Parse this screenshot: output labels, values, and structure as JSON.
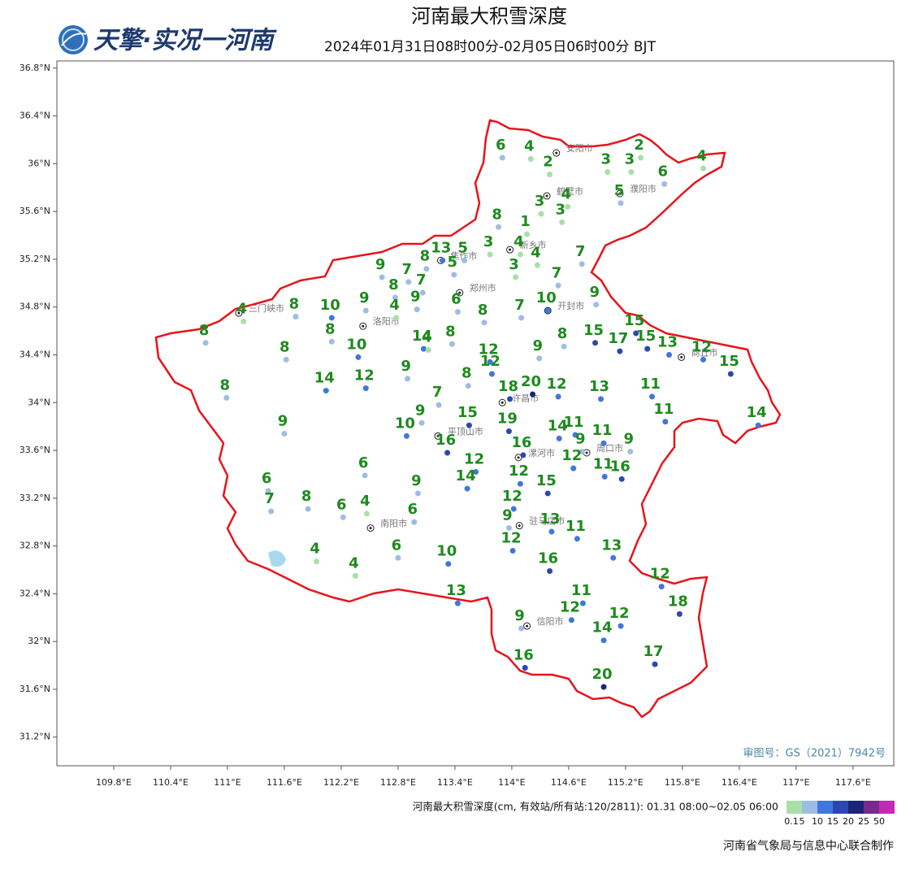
{
  "map": {
    "title": "河南最大积雪深度",
    "subtitle": "2024年01月31日08时00分-02月05日06时00分 BJT",
    "logo": "天擎·实况一河南",
    "review_number": "审图号：GS（2021）7942号",
    "footer": "河南省气象局与信息中心联合制作",
    "xlim": [
      109.2,
      118.03
    ],
    "ylim": [
      30.96,
      36.86
    ],
    "xticks": [
      {
        "value": 109.8,
        "label": "109.8°E"
      },
      {
        "value": 110.4,
        "label": "110.4°E"
      },
      {
        "value": 111,
        "label": "111°E"
      },
      {
        "value": 111.6,
        "label": "111.6°E"
      },
      {
        "value": 112.2,
        "label": "112.2°E"
      },
      {
        "value": 112.8,
        "label": "112.8°E"
      },
      {
        "value": 113.4,
        "label": "113.4°E"
      },
      {
        "value": 114,
        "label": "114°E"
      },
      {
        "value": 114.6,
        "label": "114.6°E"
      },
      {
        "value": 115.2,
        "label": "115.2°E"
      },
      {
        "value": 115.8,
        "label": "115.8°E"
      },
      {
        "value": 116.4,
        "label": "116.4°E"
      },
      {
        "value": 117,
        "label": "117°E"
      },
      {
        "value": 117.6,
        "label": "117.6°E"
      }
    ],
    "yticks": [
      {
        "value": 36.8,
        "label": "36.8°N"
      },
      {
        "value": 36.4,
        "label": "36.4°N"
      },
      {
        "value": 36,
        "label": "36°N"
      },
      {
        "value": 35.6,
        "label": "35.6°N"
      },
      {
        "value": 35.2,
        "label": "35.2°N"
      },
      {
        "value": 34.8,
        "label": "34.8°N"
      },
      {
        "value": 34.4,
        "label": "34.4°N"
      },
      {
        "value": 34,
        "label": "34°N"
      },
      {
        "value": 33.6,
        "label": "33.6°N"
      },
      {
        "value": 33.2,
        "label": "33.2°N"
      },
      {
        "value": 32.8,
        "label": "32.8°N"
      },
      {
        "value": 32.4,
        "label": "32.4°N"
      },
      {
        "value": 32,
        "label": "32°N"
      },
      {
        "value": 31.6,
        "label": "31.6°N"
      },
      {
        "value": 31.2,
        "label": "31.2°N"
      }
    ],
    "legend": {
      "caption": "河南最大积雪深度(cm, 有效站/所有站:120/2811): 01.31 08:00~02.05 06:00",
      "bounds": [
        0.1,
        5,
        10,
        15,
        20,
        25,
        50
      ],
      "colors": [
        "#a8e0a8",
        "#9dbde6",
        "#3f78dc",
        "#2a48b0",
        "#1a2478",
        "#7a2a8c",
        "#c22ab8"
      ]
    },
    "cities": [
      {
        "name": "安阳市",
        "lon": 114.47,
        "lat": 36.09
      },
      {
        "name": "鹤壁市",
        "lon": 114.37,
        "lat": 35.73
      },
      {
        "name": "濮阳市",
        "lon": 115.14,
        "lat": 35.75
      },
      {
        "name": "新乡市",
        "lon": 113.98,
        "lat": 35.28
      },
      {
        "name": "焦作市",
        "lon": 113.25,
        "lat": 35.19
      },
      {
        "name": "郑州市",
        "lon": 113.45,
        "lat": 34.92
      },
      {
        "name": "开封市",
        "lon": 114.38,
        "lat": 34.77
      },
      {
        "name": "三门峡市",
        "lon": 111.12,
        "lat": 34.75
      },
      {
        "name": "洛阳市",
        "lon": 112.43,
        "lat": 34.64
      },
      {
        "name": "商丘市",
        "lon": 115.79,
        "lat": 34.38
      },
      {
        "name": "许昌市",
        "lon": 113.9,
        "lat": 34.0
      },
      {
        "name": "平顶山市",
        "lon": 113.22,
        "lat": 33.72
      },
      {
        "name": "漯河市",
        "lon": 114.07,
        "lat": 33.54
      },
      {
        "name": "周口市",
        "lon": 114.79,
        "lat": 33.58
      },
      {
        "name": "南阳市",
        "lon": 112.51,
        "lat": 32.95
      },
      {
        "name": "驻马店市",
        "lon": 114.08,
        "lat": 32.97
      },
      {
        "name": "信阳市",
        "lon": 114.16,
        "lat": 32.13
      }
    ],
    "stations": [
      {
        "lon": 113.9,
        "lat": 36.05,
        "value": 6
      },
      {
        "lon": 114.2,
        "lat": 36.04,
        "value": 4
      },
      {
        "lon": 114.4,
        "lat": 35.91,
        "value": 2
      },
      {
        "lon": 115.01,
        "lat": 35.93,
        "value": 3
      },
      {
        "lon": 115.26,
        "lat": 35.93,
        "value": 3
      },
      {
        "lon": 115.36,
        "lat": 36.05,
        "value": 2
      },
      {
        "lon": 115.61,
        "lat": 35.83,
        "value": 6
      },
      {
        "lon": 116.02,
        "lat": 35.96,
        "value": 4
      },
      {
        "lon": 114.31,
        "lat": 35.58,
        "value": 3
      },
      {
        "lon": 114.59,
        "lat": 35.64,
        "value": 4
      },
      {
        "lon": 114.53,
        "lat": 35.51,
        "value": 3
      },
      {
        "lon": 115.15,
        "lat": 35.67,
        "value": 5
      },
      {
        "lon": 113.86,
        "lat": 35.47,
        "value": 8
      },
      {
        "lon": 114.16,
        "lat": 35.41,
        "value": 1
      },
      {
        "lon": 113.77,
        "lat": 35.24,
        "value": 3
      },
      {
        "lon": 114.09,
        "lat": 35.24,
        "value": 4
      },
      {
        "lon": 114.27,
        "lat": 35.15,
        "value": 4
      },
      {
        "lon": 114.04,
        "lat": 35.05,
        "value": 3
      },
      {
        "lon": 114.74,
        "lat": 35.16,
        "value": 7
      },
      {
        "lon": 113.27,
        "lat": 35.19,
        "value": 13
      },
      {
        "lon": 113.5,
        "lat": 35.19,
        "value": 5
      },
      {
        "lon": 113.39,
        "lat": 35.07,
        "value": 5
      },
      {
        "lon": 113.1,
        "lat": 35.12,
        "value": 8
      },
      {
        "lon": 112.63,
        "lat": 35.05,
        "value": 9
      },
      {
        "lon": 112.91,
        "lat": 35.01,
        "value": 7
      },
      {
        "lon": 113.06,
        "lat": 34.92,
        "value": 7
      },
      {
        "lon": 112.77,
        "lat": 34.88,
        "value": 8
      },
      {
        "lon": 113.0,
        "lat": 34.78,
        "value": 9
      },
      {
        "lon": 112.46,
        "lat": 34.77,
        "value": 9
      },
      {
        "lon": 112.78,
        "lat": 34.71,
        "value": 4
      },
      {
        "lon": 113.43,
        "lat": 34.76,
        "value": 6
      },
      {
        "lon": 113.71,
        "lat": 34.67,
        "value": 8
      },
      {
        "lon": 114.1,
        "lat": 34.71,
        "value": 7
      },
      {
        "lon": 114.49,
        "lat": 34.98,
        "value": 7
      },
      {
        "lon": 114.38,
        "lat": 34.77,
        "value": 10
      },
      {
        "lon": 114.89,
        "lat": 34.82,
        "value": 9
      },
      {
        "lon": 111.17,
        "lat": 34.68,
        "value": 4
      },
      {
        "lon": 110.77,
        "lat": 34.5,
        "value": 8
      },
      {
        "lon": 111.72,
        "lat": 34.72,
        "value": 8
      },
      {
        "lon": 112.1,
        "lat": 34.71,
        "value": 10
      },
      {
        "lon": 112.1,
        "lat": 34.51,
        "value": 8
      },
      {
        "lon": 111.62,
        "lat": 34.36,
        "value": 8
      },
      {
        "lon": 112.38,
        "lat": 34.38,
        "value": 10
      },
      {
        "lon": 113.07,
        "lat": 34.45,
        "value": 14
      },
      {
        "lon": 113.12,
        "lat": 34.44,
        "value": 4
      },
      {
        "lon": 113.37,
        "lat": 34.49,
        "value": 8
      },
      {
        "lon": 113.77,
        "lat": 34.34,
        "value": 12
      },
      {
        "lon": 113.79,
        "lat": 34.24,
        "value": 12
      },
      {
        "lon": 114.29,
        "lat": 34.37,
        "value": 9
      },
      {
        "lon": 114.55,
        "lat": 34.47,
        "value": 8
      },
      {
        "lon": 114.88,
        "lat": 34.5,
        "value": 15
      },
      {
        "lon": 115.14,
        "lat": 34.43,
        "value": 17
      },
      {
        "lon": 115.31,
        "lat": 34.58,
        "value": 15
      },
      {
        "lon": 115.43,
        "lat": 34.45,
        "value": 15
      },
      {
        "lon": 115.66,
        "lat": 34.4,
        "value": 13
      },
      {
        "lon": 116.02,
        "lat": 34.36,
        "value": 12
      },
      {
        "lon": 116.31,
        "lat": 34.24,
        "value": 15
      },
      {
        "lon": 110.99,
        "lat": 34.04,
        "value": 8
      },
      {
        "lon": 112.04,
        "lat": 34.1,
        "value": 14
      },
      {
        "lon": 112.46,
        "lat": 34.12,
        "value": 12
      },
      {
        "lon": 112.9,
        "lat": 34.2,
        "value": 9
      },
      {
        "lon": 113.54,
        "lat": 34.14,
        "value": 8
      },
      {
        "lon": 113.23,
        "lat": 33.98,
        "value": 7
      },
      {
        "lon": 113.98,
        "lat": 34.03,
        "value": 18
      },
      {
        "lon": 114.22,
        "lat": 34.07,
        "value": 20
      },
      {
        "lon": 114.49,
        "lat": 34.05,
        "value": 12
      },
      {
        "lon": 114.94,
        "lat": 34.03,
        "value": 13
      },
      {
        "lon": 115.48,
        "lat": 34.05,
        "value": 11
      },
      {
        "lon": 115.62,
        "lat": 33.84,
        "value": 11
      },
      {
        "lon": 116.6,
        "lat": 33.81,
        "value": 14
      },
      {
        "lon": 113.05,
        "lat": 33.83,
        "value": 9
      },
      {
        "lon": 113.55,
        "lat": 33.81,
        "value": 15
      },
      {
        "lon": 112.89,
        "lat": 33.72,
        "value": 10
      },
      {
        "lon": 113.97,
        "lat": 33.76,
        "value": 19
      },
      {
        "lon": 111.6,
        "lat": 33.74,
        "value": 9
      },
      {
        "lon": 113.32,
        "lat": 33.58,
        "value": 16
      },
      {
        "lon": 114.12,
        "lat": 33.56,
        "value": 16
      },
      {
        "lon": 114.5,
        "lat": 33.7,
        "value": 14
      },
      {
        "lon": 114.67,
        "lat": 33.73,
        "value": 11
      },
      {
        "lon": 114.74,
        "lat": 33.59,
        "value": 9
      },
      {
        "lon": 114.97,
        "lat": 33.66,
        "value": 11
      },
      {
        "lon": 115.25,
        "lat": 33.59,
        "value": 9
      },
      {
        "lon": 114.65,
        "lat": 33.45,
        "value": 12
      },
      {
        "lon": 114.98,
        "lat": 33.38,
        "value": 11
      },
      {
        "lon": 115.16,
        "lat": 33.36,
        "value": 16
      },
      {
        "lon": 112.45,
        "lat": 33.39,
        "value": 6
      },
      {
        "lon": 113.62,
        "lat": 33.42,
        "value": 12
      },
      {
        "lon": 114.09,
        "lat": 33.32,
        "value": 12
      },
      {
        "lon": 113.53,
        "lat": 33.28,
        "value": 14
      },
      {
        "lon": 114.38,
        "lat": 33.24,
        "value": 15
      },
      {
        "lon": 113.01,
        "lat": 33.24,
        "value": 9
      },
      {
        "lon": 111.43,
        "lat": 33.26,
        "value": 6
      },
      {
        "lon": 111.46,
        "lat": 33.09,
        "value": 7
      },
      {
        "lon": 111.85,
        "lat": 33.11,
        "value": 8
      },
      {
        "lon": 112.22,
        "lat": 33.04,
        "value": 6
      },
      {
        "lon": 112.47,
        "lat": 33.07,
        "value": 4
      },
      {
        "lon": 112.97,
        "lat": 33.0,
        "value": 6
      },
      {
        "lon": 114.02,
        "lat": 33.11,
        "value": 12
      },
      {
        "lon": 113.97,
        "lat": 32.95,
        "value": 9
      },
      {
        "lon": 114.42,
        "lat": 32.92,
        "value": 13
      },
      {
        "lon": 114.69,
        "lat": 32.86,
        "value": 11
      },
      {
        "lon": 114.01,
        "lat": 32.76,
        "value": 12
      },
      {
        "lon": 112.8,
        "lat": 32.7,
        "value": 6
      },
      {
        "lon": 111.94,
        "lat": 32.67,
        "value": 4
      },
      {
        "lon": 112.35,
        "lat": 32.55,
        "value": 4
      },
      {
        "lon": 113.33,
        "lat": 32.65,
        "value": 10
      },
      {
        "lon": 115.07,
        "lat": 32.7,
        "value": 13
      },
      {
        "lon": 114.4,
        "lat": 32.59,
        "value": 16
      },
      {
        "lon": 115.58,
        "lat": 32.46,
        "value": 12
      },
      {
        "lon": 114.75,
        "lat": 32.32,
        "value": 11
      },
      {
        "lon": 115.77,
        "lat": 32.23,
        "value": 18
      },
      {
        "lon": 113.43,
        "lat": 32.32,
        "value": 13
      },
      {
        "lon": 114.63,
        "lat": 32.18,
        "value": 12
      },
      {
        "lon": 115.15,
        "lat": 32.13,
        "value": 12
      },
      {
        "lon": 114.1,
        "lat": 32.11,
        "value": 9
      },
      {
        "lon": 114.97,
        "lat": 32.01,
        "value": 14
      },
      {
        "lon": 115.51,
        "lat": 31.81,
        "value": 17
      },
      {
        "lon": 114.14,
        "lat": 31.78,
        "value": 16
      },
      {
        "lon": 114.97,
        "lat": 31.62,
        "value": 20
      }
    ]
  }
}
